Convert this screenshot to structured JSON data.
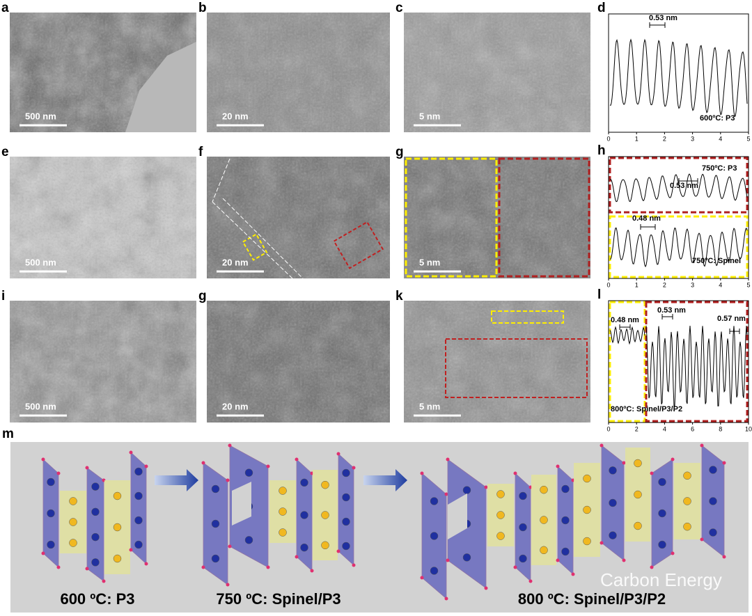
{
  "panels": [
    {
      "label": "a",
      "scale_bar": "500 nm"
    },
    {
      "label": "b",
      "scale_bar": "20 nm"
    },
    {
      "label": "c",
      "scale_bar": "5 nm"
    },
    {
      "label": "e",
      "scale_bar": "500 nm"
    },
    {
      "label": "f",
      "scale_bar": "20 nm"
    },
    {
      "label": "g",
      "scale_bar": "5 nm"
    },
    {
      "label": "i",
      "scale_bar": "500 nm"
    },
    {
      "label": "g",
      "scale_bar": "20 nm"
    },
    {
      "label": "k",
      "scale_bar": "5 nm"
    }
  ],
  "profiles": [
    {
      "label": "d",
      "annotations": [
        "0.53 nm",
        "600ºC: P3"
      ],
      "xlim": [
        0,
        5
      ],
      "xticks": [
        0,
        1,
        2,
        3,
        4,
        5
      ]
    },
    {
      "label": "h",
      "annotations": [
        "750ºC: P3",
        "0.53 nm",
        "0.48 nm",
        "750ºC: Spinel"
      ],
      "xlim": [
        0,
        5
      ],
      "xticks": [
        0,
        1,
        2,
        3,
        4,
        5
      ]
    },
    {
      "label": "l",
      "annotations": [
        "0.48 nm",
        "0.53 nm",
        "0.57 nm",
        "800ºC: Spinel/P3/P2"
      ],
      "xlim": [
        0,
        10
      ],
      "xticks": [
        0,
        2,
        4,
        6,
        8,
        10
      ]
    }
  ],
  "scheme": {
    "label": "m",
    "stages": [
      "600 ºC: P3",
      "750 ºC: Spinel/P3",
      "800 ºC: Spinel/P3/P2"
    ]
  },
  "watermark": "Carbon Energy"
}
